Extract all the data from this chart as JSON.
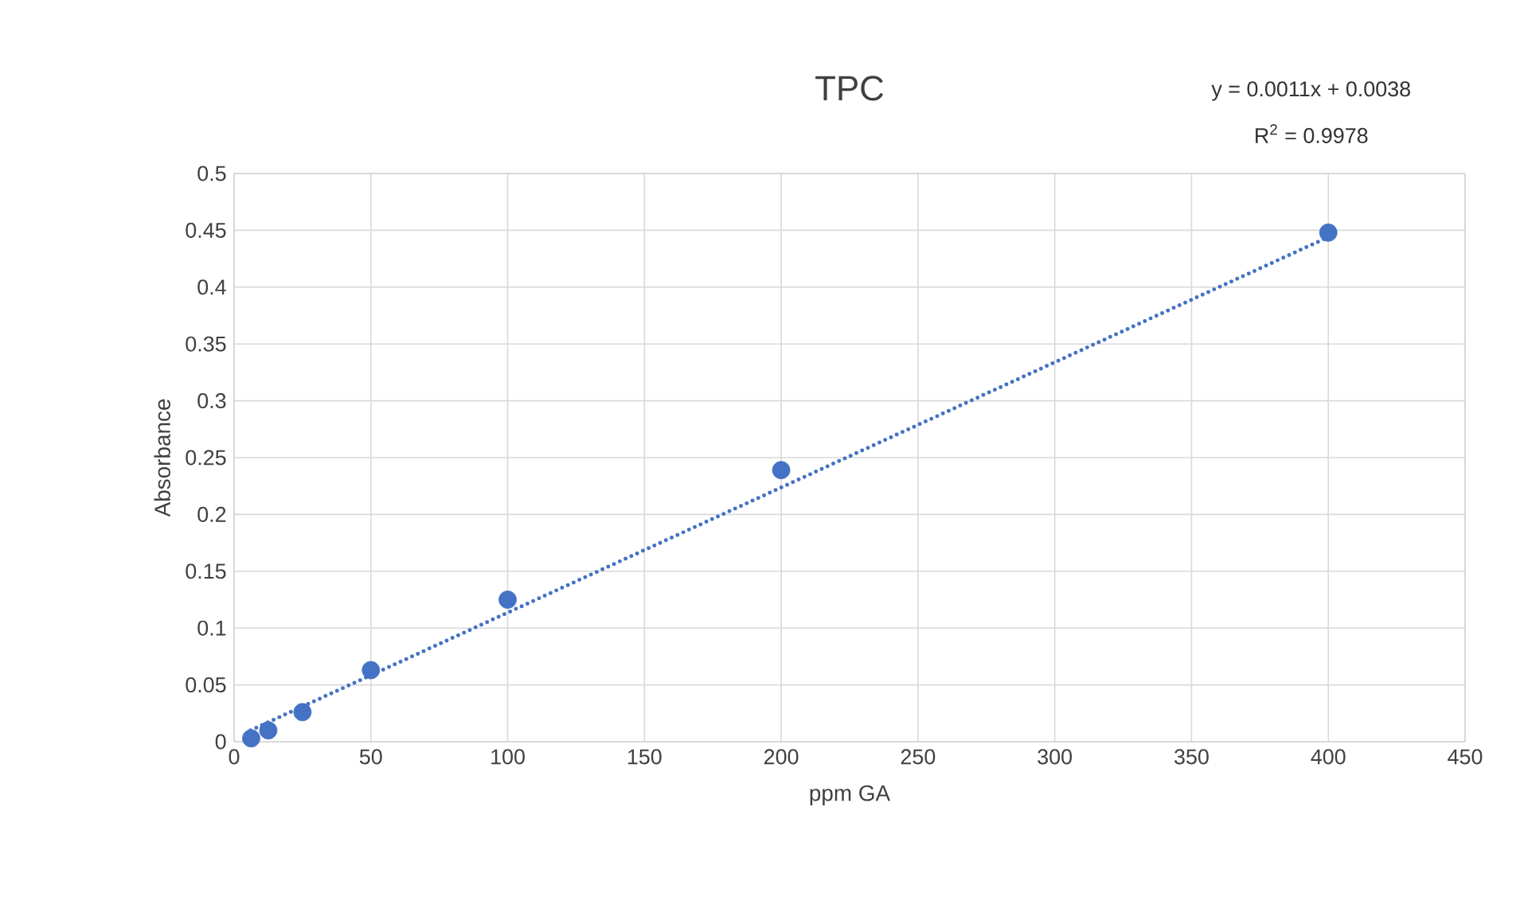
{
  "chart_data": {
    "type": "scatter",
    "title": "TPC",
    "xlabel": "ppm GA",
    "ylabel": "Absorbance",
    "annotations": [
      "y = 0.0011x + 0.0038",
      "R$^{2}$ = 0.9978"
    ],
    "xlim": [
      0,
      450
    ],
    "xticks": [
      0,
      50,
      100,
      150,
      200,
      250,
      300,
      350,
      400,
      450
    ],
    "ylim": [
      0,
      0.5
    ],
    "yticks": [
      0,
      0.05,
      0.1,
      0.15,
      0.2,
      0.25,
      0.3,
      0.35,
      0.4,
      0.45,
      0.5
    ],
    "grid": true,
    "series": [
      {
        "color": "#4472c4",
        "marker": "circle",
        "x": [
          6.25,
          12.5,
          25,
          50,
          100,
          200,
          400
        ],
        "values": [
          0.003,
          0.01,
          0.026,
          0.063,
          0.125,
          0.239,
          0.448
        ]
      },
      {
        "type": "line",
        "color": "#4472c4",
        "line_style": "dotted",
        "marker": "none",
        "x": [
          6,
          400
        ],
        "values": [
          0.01,
          0.444
        ]
      }
    ]
  }
}
